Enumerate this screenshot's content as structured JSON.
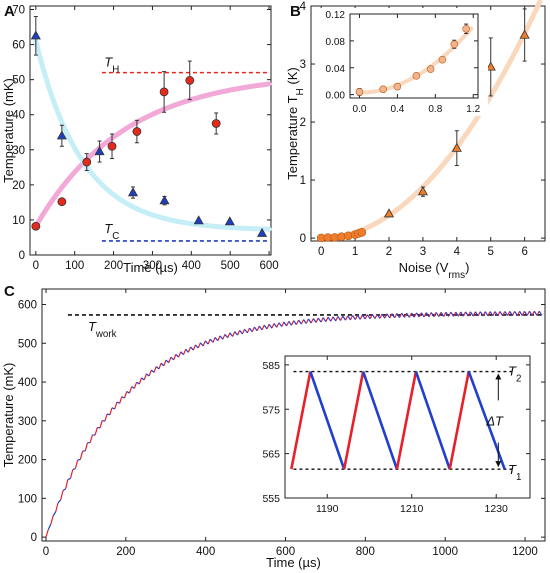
{
  "chart_data": [
    {
      "panel": "A",
      "type": "scatter",
      "xlabel": "Time (µs)",
      "ylabel": "Temperature (mK)",
      "xlim": [
        -15,
        605
      ],
      "ylim": [
        0,
        71
      ],
      "xticks": [
        0,
        100,
        200,
        300,
        400,
        500,
        600
      ],
      "yticks": [
        0,
        10,
        20,
        30,
        40,
        50,
        60,
        70
      ],
      "series": [
        {
          "marker": "circle",
          "color": "#e52a1c",
          "fit_color": "#f2a9d8",
          "points": [
            {
              "x": 0,
              "y": 8.2,
              "err": 0
            },
            {
              "x": 67,
              "y": 15.2,
              "err": 0.8
            },
            {
              "x": 131,
              "y": 26.5,
              "err": 2.4
            },
            {
              "x": 196,
              "y": 31.0,
              "err": 3.5
            },
            {
              "x": 260,
              "y": 35.2,
              "err": 3.2
            },
            {
              "x": 330,
              "y": 46.5,
              "err": 5.8
            },
            {
              "x": 396,
              "y": 49.8,
              "err": 5.5
            },
            {
              "x": 464,
              "y": 37.5,
              "err": 3.0
            }
          ],
          "fit": {
            "form": "exp-rise",
            "start": 8.2,
            "asymptote": 52,
            "tau": 230
          }
        },
        {
          "marker": "triangle",
          "color": "#1f3fbf",
          "fit_color": "#c6eef6",
          "points": [
            {
              "x": 0,
              "y": 62.5,
              "err": 5.5
            },
            {
              "x": 67,
              "y": 34.0,
              "err": 3.0
            },
            {
              "x": 164,
              "y": 29.5,
              "err": 3.0
            },
            {
              "x": 250,
              "y": 17.8,
              "err": 1.6
            },
            {
              "x": 331,
              "y": 15.5,
              "err": 1.2
            },
            {
              "x": 419,
              "y": 9.8,
              "err": 0
            },
            {
              "x": 499,
              "y": 9.5,
              "err": 0
            },
            {
              "x": 582,
              "y": 6.2,
              "err": 0
            }
          ],
          "fit": {
            "form": "exp-decay",
            "start": 61,
            "asymptote": 7,
            "tau": 120
          }
        }
      ],
      "reference_lines": [
        {
          "name": "T",
          "sub": "H",
          "y": 52,
          "x_from": 170,
          "x_to": 600,
          "color": "#e52a1c"
        },
        {
          "name": "T",
          "sub": "C",
          "y": 4,
          "x_from": 170,
          "x_to": 600,
          "color": "#1f3fbf"
        }
      ]
    },
    {
      "panel": "B",
      "type": "scatter",
      "xlabel": "Noise (V",
      "xlabel_sub": "rms",
      "xlabel_tail": ")",
      "ylabel": "Temperature T",
      "ylabel_sub": "H",
      "ylabel_tail": " (K)",
      "xlim": [
        -0.3,
        6.6
      ],
      "ylim": [
        -0.05,
        4
      ],
      "xticks": [
        0,
        1,
        2,
        3,
        4,
        5,
        6
      ],
      "yticks": [
        0,
        1,
        2,
        3,
        4
      ],
      "series": [
        {
          "marker": "circle",
          "color": "#ee7d2c",
          "points": [
            {
              "x": 0.0,
              "y": 0.004
            },
            {
              "x": 0.2,
              "y": 0.01
            },
            {
              "x": 0.4,
              "y": 0.012
            },
            {
              "x": 0.6,
              "y": 0.025
            },
            {
              "x": 0.8,
              "y": 0.04
            },
            {
              "x": 1.0,
              "y": 0.06
            },
            {
              "x": 1.1,
              "y": 0.08
            },
            {
              "x": 1.2,
              "y": 0.1
            }
          ]
        },
        {
          "marker": "triangle",
          "color": "#ee7d2c",
          "points": [
            {
              "x": 2,
              "y": 0.42,
              "err": 0
            },
            {
              "x": 3,
              "y": 0.8,
              "err": 0.08
            },
            {
              "x": 4,
              "y": 1.55,
              "err": 0.3
            },
            {
              "x": 5,
              "y": 2.95,
              "err": 0.5
            },
            {
              "x": 6,
              "y": 3.5,
              "err": 0.45
            }
          ]
        }
      ],
      "fit": {
        "form": "quadratic",
        "coef": 0.098,
        "color": "#fad8bd"
      },
      "inset": {
        "xlim": [
          -0.1,
          1.25
        ],
        "ylim": [
          -0.005,
          0.12
        ],
        "xticks": [
          0.0,
          0.4,
          0.8,
          1.2
        ],
        "xtick_labels": [
          "0.0",
          "0.4",
          "0.8",
          "1.2"
        ],
        "yticks": [
          0.0,
          0.04,
          0.08,
          0.12
        ],
        "ytick_labels": [
          "0.00",
          "0.04",
          "0.08",
          "0.12"
        ],
        "points": [
          {
            "x": 0.0,
            "y": 0.004,
            "err": 0.005
          },
          {
            "x": 0.25,
            "y": 0.008,
            "err": 0.004
          },
          {
            "x": 0.4,
            "y": 0.012,
            "err": 0.004
          },
          {
            "x": 0.6,
            "y": 0.028,
            "err": 0.004
          },
          {
            "x": 0.75,
            "y": 0.038,
            "err": 0.004
          },
          {
            "x": 0.875,
            "y": 0.052,
            "err": 0.004
          },
          {
            "x": 1.0,
            "y": 0.075,
            "err": 0.006
          },
          {
            "x": 1.125,
            "y": 0.098,
            "err": 0.007
          }
        ]
      }
    },
    {
      "panel": "C",
      "type": "line",
      "xlabel": "Time (µs)",
      "ylabel": "Temperature (mK)",
      "xlim": [
        -10,
        1250
      ],
      "ylim": [
        -10,
        640
      ],
      "xticks": [
        0,
        200,
        400,
        600,
        800,
        1000,
        1200
      ],
      "yticks": [
        0,
        100,
        200,
        300,
        400,
        500,
        600
      ],
      "curve": {
        "form": "exp-rise",
        "asymptote": 573,
        "tau": 200,
        "period": 12.3,
        "ripple": 22
      },
      "reference_lines": [
        {
          "name": "T",
          "sub": "work",
          "y": 573,
          "x_from": 55,
          "x_to": 1245,
          "color": "#111111"
        }
      ],
      "colors": {
        "heating": "#e8202a",
        "cooling": "#1f3fcf"
      },
      "inset": {
        "xlim": [
          1180,
          1238
        ],
        "ylim": [
          555,
          587
        ],
        "xticks": [
          1190,
          1210,
          1230
        ],
        "yticks": [
          555,
          565,
          575,
          585
        ],
        "t1": 561.5,
        "t2": 583.5,
        "cycles": [
          {
            "low_x": 1181.5,
            "peak_x": 1186
          },
          {
            "low_x": 1194,
            "peak_x": 1198.5
          },
          {
            "low_x": 1206.5,
            "peak_x": 1211
          },
          {
            "low_x": 1219,
            "peak_x": 1223.5
          }
        ],
        "end_x": 1232,
        "label_t2": {
          "name": "T",
          "sub": "2"
        },
        "label_t1": {
          "name": "T",
          "sub": "1"
        },
        "label_delta": "ΔT"
      }
    }
  ]
}
